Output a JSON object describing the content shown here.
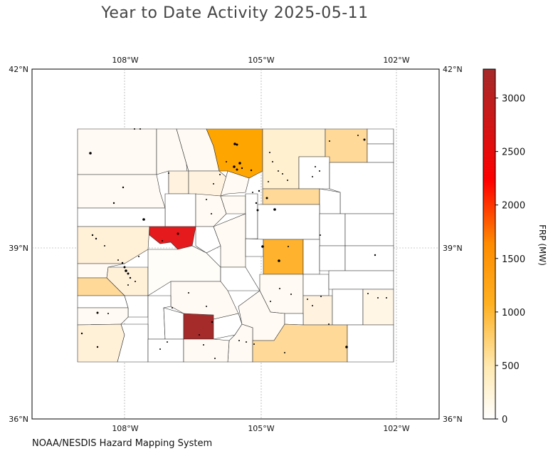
{
  "title": "Year to Date Activity 2025-05-11",
  "credit": "NOAA/NESDIS Hazard Mapping System",
  "map": {
    "lat_labels": [
      "42°N",
      "39°N",
      "36°N"
    ],
    "lon_labels": [
      "108°W",
      "105°W",
      "102°W"
    ]
  },
  "colorbar": {
    "label": "FRP (MW)",
    "ticks": [
      "0",
      "500",
      "1000",
      "1500",
      "2000",
      "2500",
      "3000"
    ],
    "tick_values": [
      0,
      500,
      1000,
      1500,
      2000,
      2500,
      3000
    ],
    "max": 3270,
    "colors": [
      "#ffffff",
      "#ffe9b0",
      "#ffb020",
      "#ff8c00",
      "#ff0000",
      "#a52a2a"
    ]
  }
}
